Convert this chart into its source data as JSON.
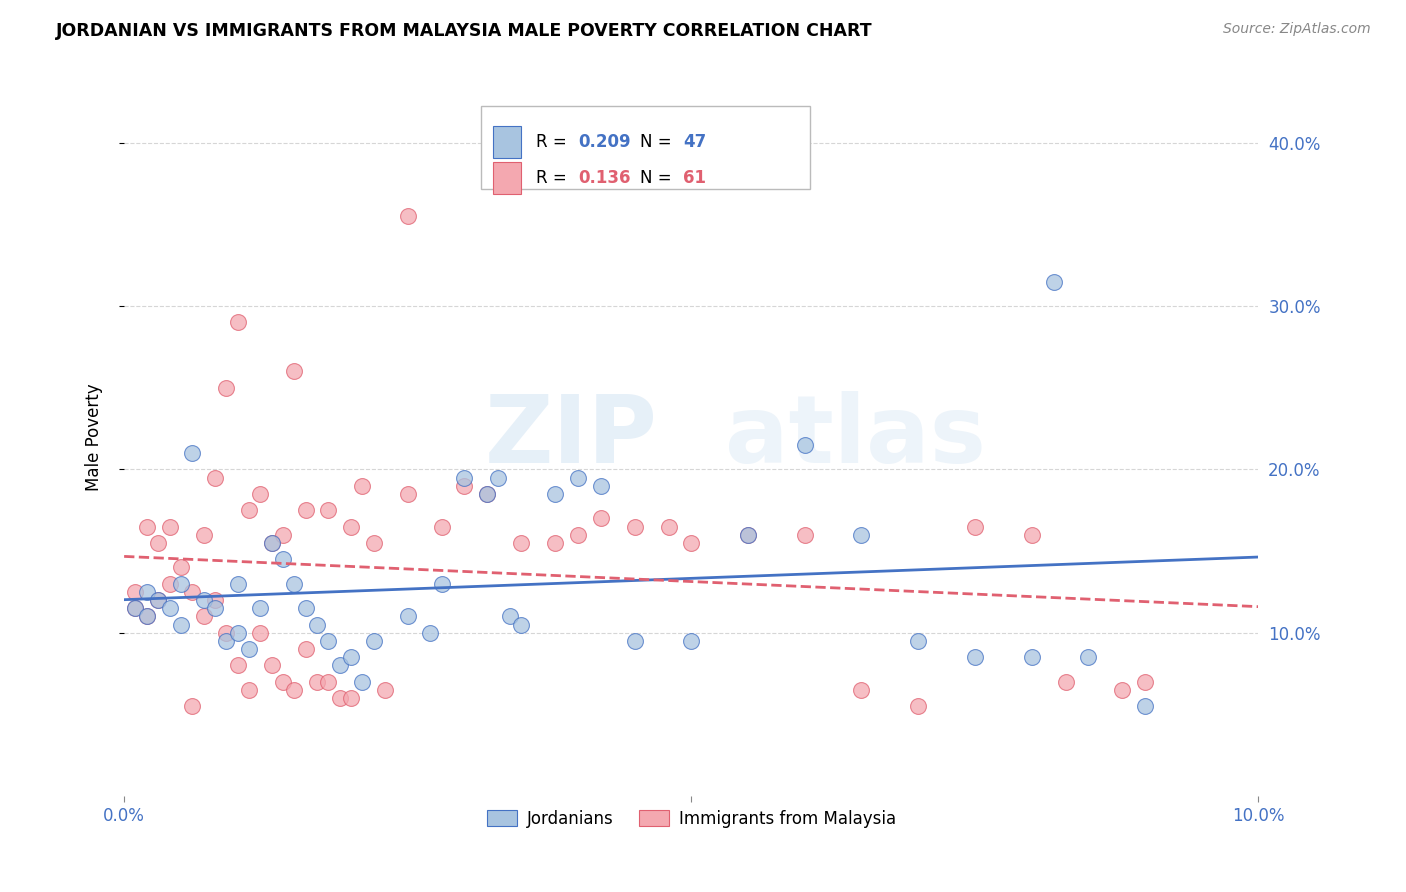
{
  "title": "JORDANIAN VS IMMIGRANTS FROM MALAYSIA MALE POVERTY CORRELATION CHART",
  "source": "Source: ZipAtlas.com",
  "ylabel": "Male Poverty",
  "right_yticks": [
    "40.0%",
    "30.0%",
    "20.0%",
    "10.0%"
  ],
  "right_ytick_vals": [
    0.4,
    0.3,
    0.2,
    0.1
  ],
  "xlim": [
    0.0,
    0.1
  ],
  "ylim": [
    0.0,
    0.44
  ],
  "legend_blue_R": "0.209",
  "legend_blue_N": "47",
  "legend_pink_R": "0.136",
  "legend_pink_N": "61",
  "blue_color": "#A8C4E0",
  "pink_color": "#F4A8B0",
  "line_blue": "#4472C4",
  "line_pink": "#E06070",
  "watermark": "ZIPatlas",
  "blue_points": [
    [
      0.001,
      0.115
    ],
    [
      0.002,
      0.125
    ],
    [
      0.002,
      0.11
    ],
    [
      0.003,
      0.12
    ],
    [
      0.004,
      0.115
    ],
    [
      0.005,
      0.13
    ],
    [
      0.005,
      0.105
    ],
    [
      0.006,
      0.21
    ],
    [
      0.007,
      0.12
    ],
    [
      0.008,
      0.115
    ],
    [
      0.009,
      0.095
    ],
    [
      0.01,
      0.13
    ],
    [
      0.01,
      0.1
    ],
    [
      0.011,
      0.09
    ],
    [
      0.012,
      0.115
    ],
    [
      0.013,
      0.155
    ],
    [
      0.014,
      0.145
    ],
    [
      0.015,
      0.13
    ],
    [
      0.016,
      0.115
    ],
    [
      0.017,
      0.105
    ],
    [
      0.018,
      0.095
    ],
    [
      0.019,
      0.08
    ],
    [
      0.02,
      0.085
    ],
    [
      0.021,
      0.07
    ],
    [
      0.022,
      0.095
    ],
    [
      0.025,
      0.11
    ],
    [
      0.027,
      0.1
    ],
    [
      0.028,
      0.13
    ],
    [
      0.03,
      0.195
    ],
    [
      0.032,
      0.185
    ],
    [
      0.033,
      0.195
    ],
    [
      0.034,
      0.11
    ],
    [
      0.035,
      0.105
    ],
    [
      0.038,
      0.185
    ],
    [
      0.04,
      0.195
    ],
    [
      0.042,
      0.19
    ],
    [
      0.045,
      0.095
    ],
    [
      0.05,
      0.095
    ],
    [
      0.055,
      0.16
    ],
    [
      0.06,
      0.215
    ],
    [
      0.065,
      0.16
    ],
    [
      0.07,
      0.095
    ],
    [
      0.075,
      0.085
    ],
    [
      0.08,
      0.085
    ],
    [
      0.082,
      0.315
    ],
    [
      0.085,
      0.085
    ],
    [
      0.09,
      0.055
    ]
  ],
  "pink_points": [
    [
      0.001,
      0.115
    ],
    [
      0.001,
      0.125
    ],
    [
      0.002,
      0.11
    ],
    [
      0.002,
      0.165
    ],
    [
      0.003,
      0.155
    ],
    [
      0.003,
      0.12
    ],
    [
      0.004,
      0.13
    ],
    [
      0.004,
      0.165
    ],
    [
      0.005,
      0.14
    ],
    [
      0.006,
      0.125
    ],
    [
      0.006,
      0.055
    ],
    [
      0.007,
      0.16
    ],
    [
      0.007,
      0.11
    ],
    [
      0.008,
      0.195
    ],
    [
      0.008,
      0.12
    ],
    [
      0.009,
      0.1
    ],
    [
      0.009,
      0.25
    ],
    [
      0.01,
      0.29
    ],
    [
      0.01,
      0.08
    ],
    [
      0.011,
      0.175
    ],
    [
      0.011,
      0.065
    ],
    [
      0.012,
      0.185
    ],
    [
      0.012,
      0.1
    ],
    [
      0.013,
      0.155
    ],
    [
      0.013,
      0.08
    ],
    [
      0.014,
      0.16
    ],
    [
      0.014,
      0.07
    ],
    [
      0.015,
      0.26
    ],
    [
      0.015,
      0.065
    ],
    [
      0.016,
      0.175
    ],
    [
      0.016,
      0.09
    ],
    [
      0.017,
      0.07
    ],
    [
      0.018,
      0.175
    ],
    [
      0.018,
      0.07
    ],
    [
      0.019,
      0.06
    ],
    [
      0.02,
      0.165
    ],
    [
      0.02,
      0.06
    ],
    [
      0.021,
      0.19
    ],
    [
      0.022,
      0.155
    ],
    [
      0.023,
      0.065
    ],
    [
      0.025,
      0.185
    ],
    [
      0.025,
      0.355
    ],
    [
      0.028,
      0.165
    ],
    [
      0.03,
      0.19
    ],
    [
      0.032,
      0.185
    ],
    [
      0.035,
      0.155
    ],
    [
      0.038,
      0.155
    ],
    [
      0.04,
      0.16
    ],
    [
      0.042,
      0.17
    ],
    [
      0.045,
      0.165
    ],
    [
      0.048,
      0.165
    ],
    [
      0.05,
      0.155
    ],
    [
      0.055,
      0.16
    ],
    [
      0.06,
      0.16
    ],
    [
      0.065,
      0.065
    ],
    [
      0.07,
      0.055
    ],
    [
      0.075,
      0.165
    ],
    [
      0.08,
      0.16
    ],
    [
      0.083,
      0.07
    ],
    [
      0.088,
      0.065
    ],
    [
      0.09,
      0.07
    ]
  ]
}
